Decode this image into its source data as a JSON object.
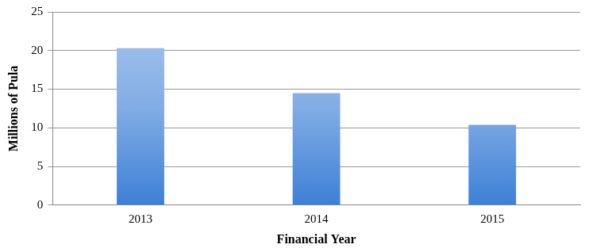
{
  "chart_data": {
    "type": "bar",
    "categories": [
      "2013",
      "2014",
      "2015"
    ],
    "values": [
      20.3,
      14.5,
      10.4
    ],
    "color": "#3d80d6",
    "x_label": "Financial Year",
    "y_label": "Millions of Pula",
    "ylim": [
      0,
      25
    ],
    "yticks": [
      0,
      5,
      10,
      15,
      20,
      25
    ],
    "grid": true
  }
}
